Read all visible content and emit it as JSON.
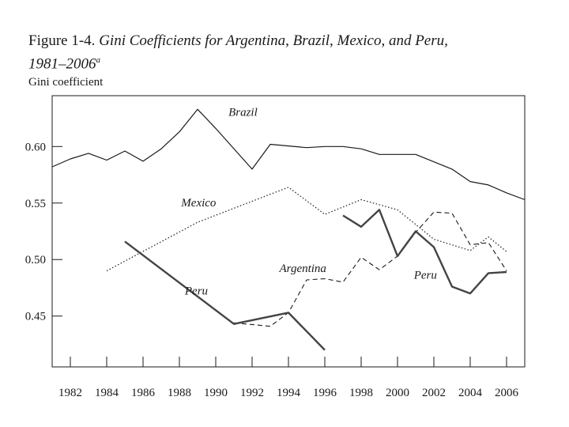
{
  "figure": {
    "label": "Figure 1-4.",
    "title": "Gini Coefficients for Argentina, Brazil, Mexico, and Peru,",
    "years": "1981–2006",
    "footnote_mark": "a"
  },
  "chart_data": {
    "type": "line",
    "ylabel": "Gini coefficient",
    "xlim": [
      1981,
      2007
    ],
    "ylim": [
      0.405,
      0.645
    ],
    "x_ticks": [
      1982,
      1984,
      1986,
      1988,
      1990,
      1992,
      1994,
      1996,
      1998,
      2000,
      2002,
      2004,
      2006
    ],
    "y_ticks": [
      0.45,
      0.5,
      0.55,
      0.6
    ],
    "y_tick_labels": [
      "0.45",
      "0.50",
      "0.55",
      "0.60"
    ],
    "series": [
      {
        "name": "Brazil",
        "style": "solid-thin",
        "color": "#1a1a1a",
        "label_pos": [
          1990.7,
          0.627
        ],
        "points": [
          [
            1981,
            0.582
          ],
          [
            1982,
            0.589
          ],
          [
            1983,
            0.594
          ],
          [
            1984,
            0.588
          ],
          [
            1985,
            0.596
          ],
          [
            1986,
            0.587
          ],
          [
            1987,
            0.598
          ],
          [
            1988,
            0.613
          ],
          [
            1989,
            0.633
          ],
          [
            1990,
            0.616
          ],
          [
            1992,
            0.58
          ],
          [
            1993,
            0.602
          ],
          [
            1995,
            0.599
          ],
          [
            1996,
            0.6
          ],
          [
            1997,
            0.6
          ],
          [
            1998,
            0.598
          ],
          [
            1999,
            0.593
          ],
          [
            2001,
            0.593
          ],
          [
            2003,
            0.58
          ],
          [
            2004,
            0.569
          ],
          [
            2005,
            0.566
          ],
          [
            2006,
            0.559
          ],
          [
            2007,
            0.553
          ]
        ]
      },
      {
        "name": "Mexico",
        "style": "dotted",
        "color": "#1a1a1a",
        "label_pos": [
          1988.1,
          0.547
        ],
        "points": [
          [
            1984,
            0.49
          ],
          [
            1989,
            0.533
          ],
          [
            1994,
            0.564
          ],
          [
            1996,
            0.54
          ],
          [
            1998,
            0.553
          ],
          [
            2000,
            0.544
          ],
          [
            2002,
            0.518
          ],
          [
            2004,
            0.508
          ],
          [
            2005,
            0.52
          ],
          [
            2006,
            0.507
          ]
        ]
      },
      {
        "name": "Argentina",
        "style": "dashed",
        "color": "#1a1a1a",
        "label_pos": [
          1993.5,
          0.489
        ],
        "points": [
          [
            1991,
            0.444
          ],
          [
            1993,
            0.441
          ],
          [
            1994,
            0.453
          ],
          [
            1995,
            0.482
          ],
          [
            1996,
            0.483
          ],
          [
            1997,
            0.48
          ],
          [
            1998,
            0.502
          ],
          [
            1999,
            0.491
          ],
          [
            2000,
            0.503
          ],
          [
            2001,
            0.524
          ],
          [
            2002,
            0.542
          ],
          [
            2003,
            0.541
          ],
          [
            2004,
            0.513
          ],
          [
            2005,
            0.515
          ],
          [
            2006,
            0.49
          ]
        ]
      },
      {
        "name": "Peru",
        "style": "solid-thick",
        "color": "#444444",
        "label_pos": [
          1988.3,
          0.469
        ],
        "label_pos_2": [
          2000.9,
          0.483
        ],
        "segments": [
          [
            [
              1985,
              0.516
            ],
            [
              1991,
              0.443
            ],
            [
              1994,
              0.453
            ],
            [
              1996,
              0.42
            ]
          ],
          [
            [
              1997,
              0.539
            ],
            [
              1998,
              0.529
            ],
            [
              1999,
              0.544
            ],
            [
              2000,
              0.503
            ],
            [
              2001,
              0.525
            ],
            [
              2002,
              0.511
            ],
            [
              2003,
              0.476
            ],
            [
              2004,
              0.47
            ],
            [
              2005,
              0.488
            ],
            [
              2006,
              0.489
            ]
          ]
        ]
      }
    ]
  }
}
